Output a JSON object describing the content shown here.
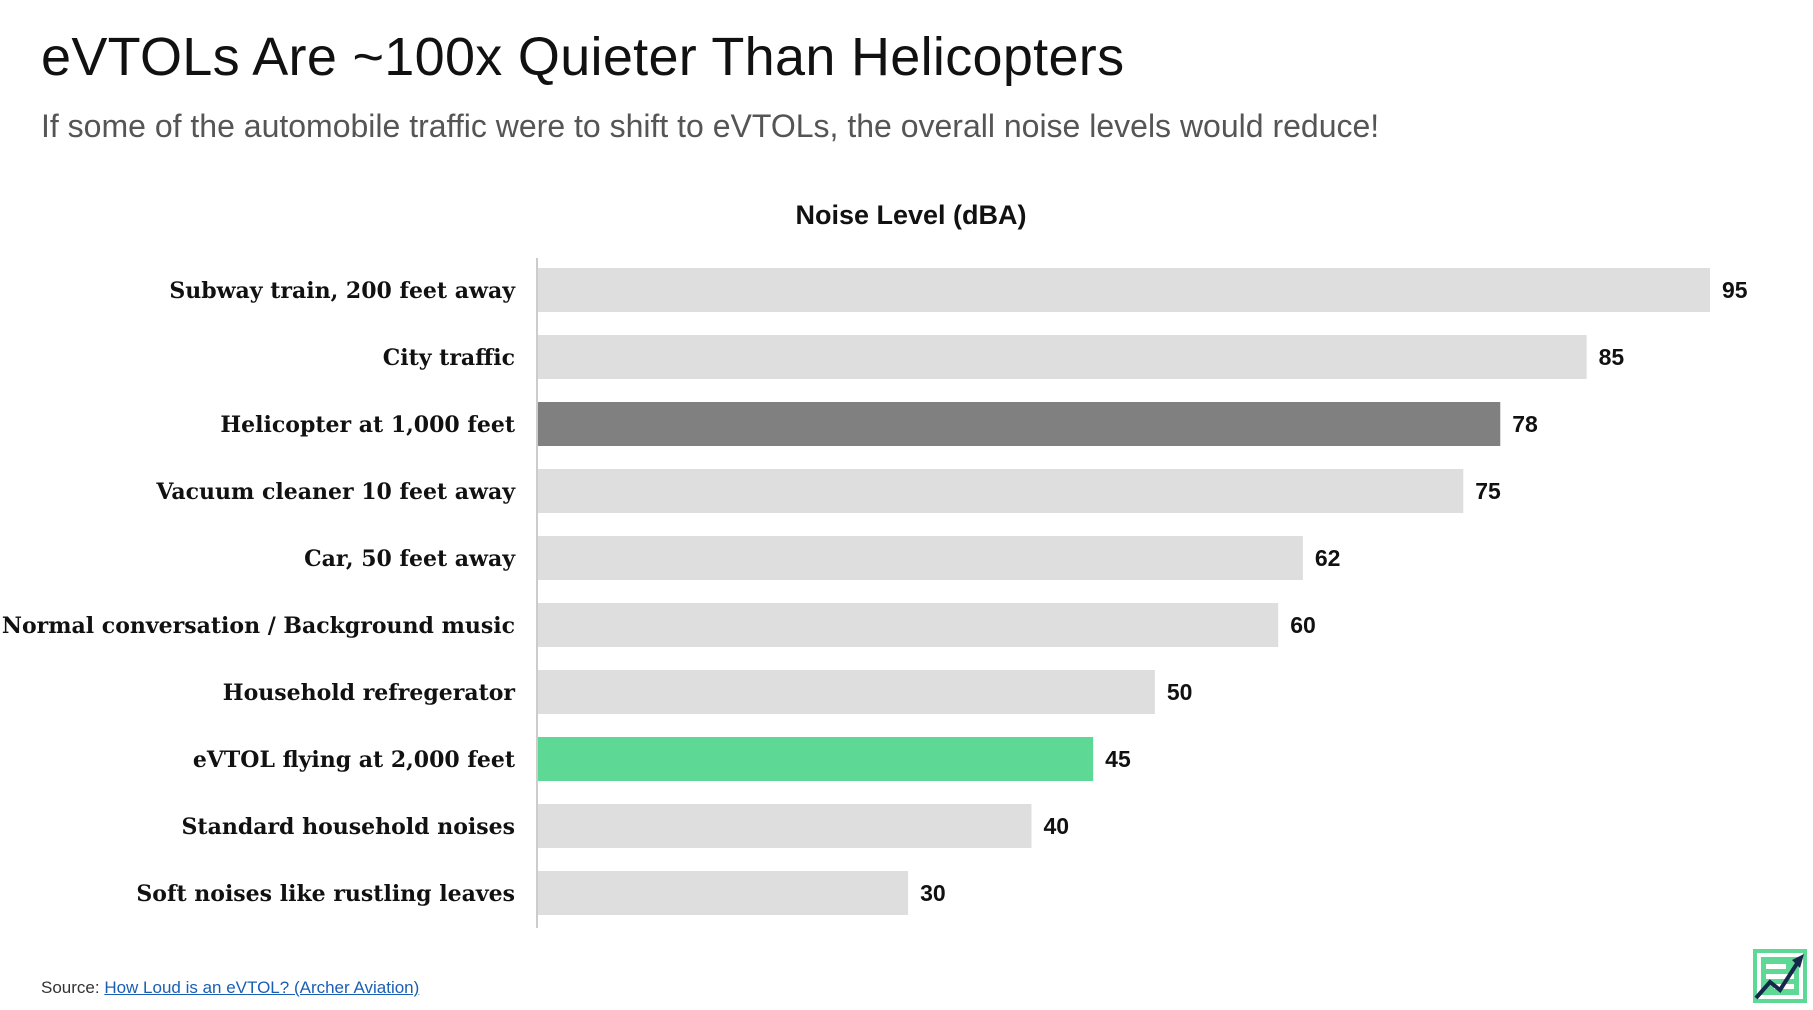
{
  "header": {
    "title": "eVTOLs Are ~100x Quieter Than Helicopters",
    "subtitle": "If some of the automobile traffic were to shift to eVTOLs, the overall noise levels would reduce!"
  },
  "footer": {
    "source_prefix": "Source: ",
    "source_link_text": "How Loud is an eVTOL? (Archer Aviation)"
  },
  "logo": {
    "icon": "trend-chart-logo-icon"
  },
  "colors": {
    "default_bar": "#dedede",
    "helicopter_bar": "#808080",
    "evtol_bar": "#5dd995",
    "link": "#1a5fb4"
  },
  "chart_data": {
    "type": "bar",
    "orientation": "horizontal",
    "title": "Noise Level (dBA)",
    "xlabel": "",
    "ylabel": "",
    "xlim": [
      0,
      95
    ],
    "grid": false,
    "legend": "none",
    "categories": [
      "Subway train, 200 feet away",
      "City traffic",
      "Helicopter at 1,000 feet",
      "Vacuum cleaner 10 feet away",
      "Car, 50 feet away",
      "Normal conversation / Background music",
      "Household refregerator",
      "eVTOL flying at 2,000 feet",
      "Standard household noises",
      "Soft noises like rustling leaves"
    ],
    "values": [
      95,
      85,
      78,
      75,
      62,
      60,
      50,
      45,
      40,
      30
    ],
    "highlight": {
      "Helicopter at 1,000 feet": "#808080",
      "eVTOL flying at 2,000 feet": "#5dd995"
    }
  }
}
